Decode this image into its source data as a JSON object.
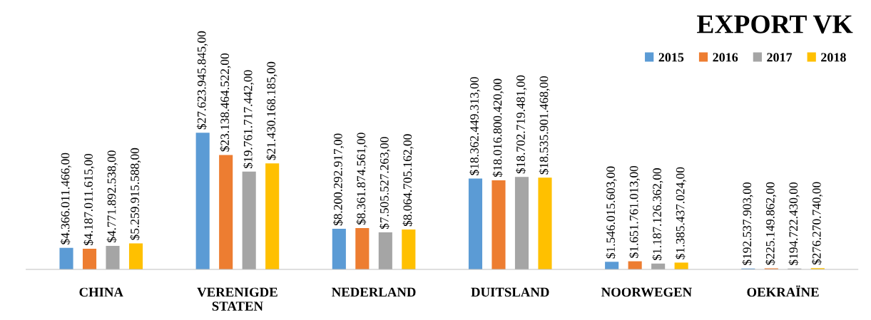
{
  "chart_data": {
    "type": "bar",
    "title": "EXPORT VK",
    "categories": [
      "CHINA",
      "VERENIGDE\nSTATEN",
      "NEDERLAND",
      "DUITSLAND",
      "NOORWEGEN",
      "OEKRAÏNE"
    ],
    "series": [
      {
        "name": "2015",
        "color": "#5b9bd5",
        "values": [
          4366011466,
          27623945845,
          8200292917,
          18362449313,
          1546015603,
          192537903
        ],
        "value_labels": [
          "$4.366.011.466,00",
          "$27.623.945.845,00",
          "$8.200.292.917,00",
          "$18.362.449.313,00",
          "$1.546.015.603,00",
          "$192.537.903,00"
        ]
      },
      {
        "name": "2016",
        "color": "#ed7d31",
        "values": [
          4187011615,
          23138464522,
          8361874561,
          18016800420,
          1651761013,
          225149862
        ],
        "value_labels": [
          "$4.187.011.615,00",
          "$23.138.464.522,00",
          "$8.361.874.561,00",
          "$18.016.800.420,00",
          "$1.651.761.013,00",
          "$225.149.862,00"
        ]
      },
      {
        "name": "2017",
        "color": "#a5a5a5",
        "values": [
          4771892538,
          19761717442,
          7505527263,
          18702719481,
          1187126362,
          194722430
        ],
        "value_labels": [
          "$4.771.892.538,00",
          "$19.761.717.442,00",
          "$7.505.527.263,00",
          "$18.702.719.481,00",
          "$1.187.126.362,00",
          "$194.722.430,00"
        ]
      },
      {
        "name": "2018",
        "color": "#ffc000",
        "values": [
          5259915588,
          21430168185,
          8064705162,
          18535901468,
          1385437024,
          276270740
        ],
        "value_labels": [
          "$5.259.915.588,00",
          "$21.430.168.185,00",
          "$8.064.705.162,00",
          "$18.535.901.468,00",
          "$1.385.437.024,00",
          "$276.270.740,00"
        ]
      }
    ],
    "legend": "top right",
    "grid": false
  }
}
